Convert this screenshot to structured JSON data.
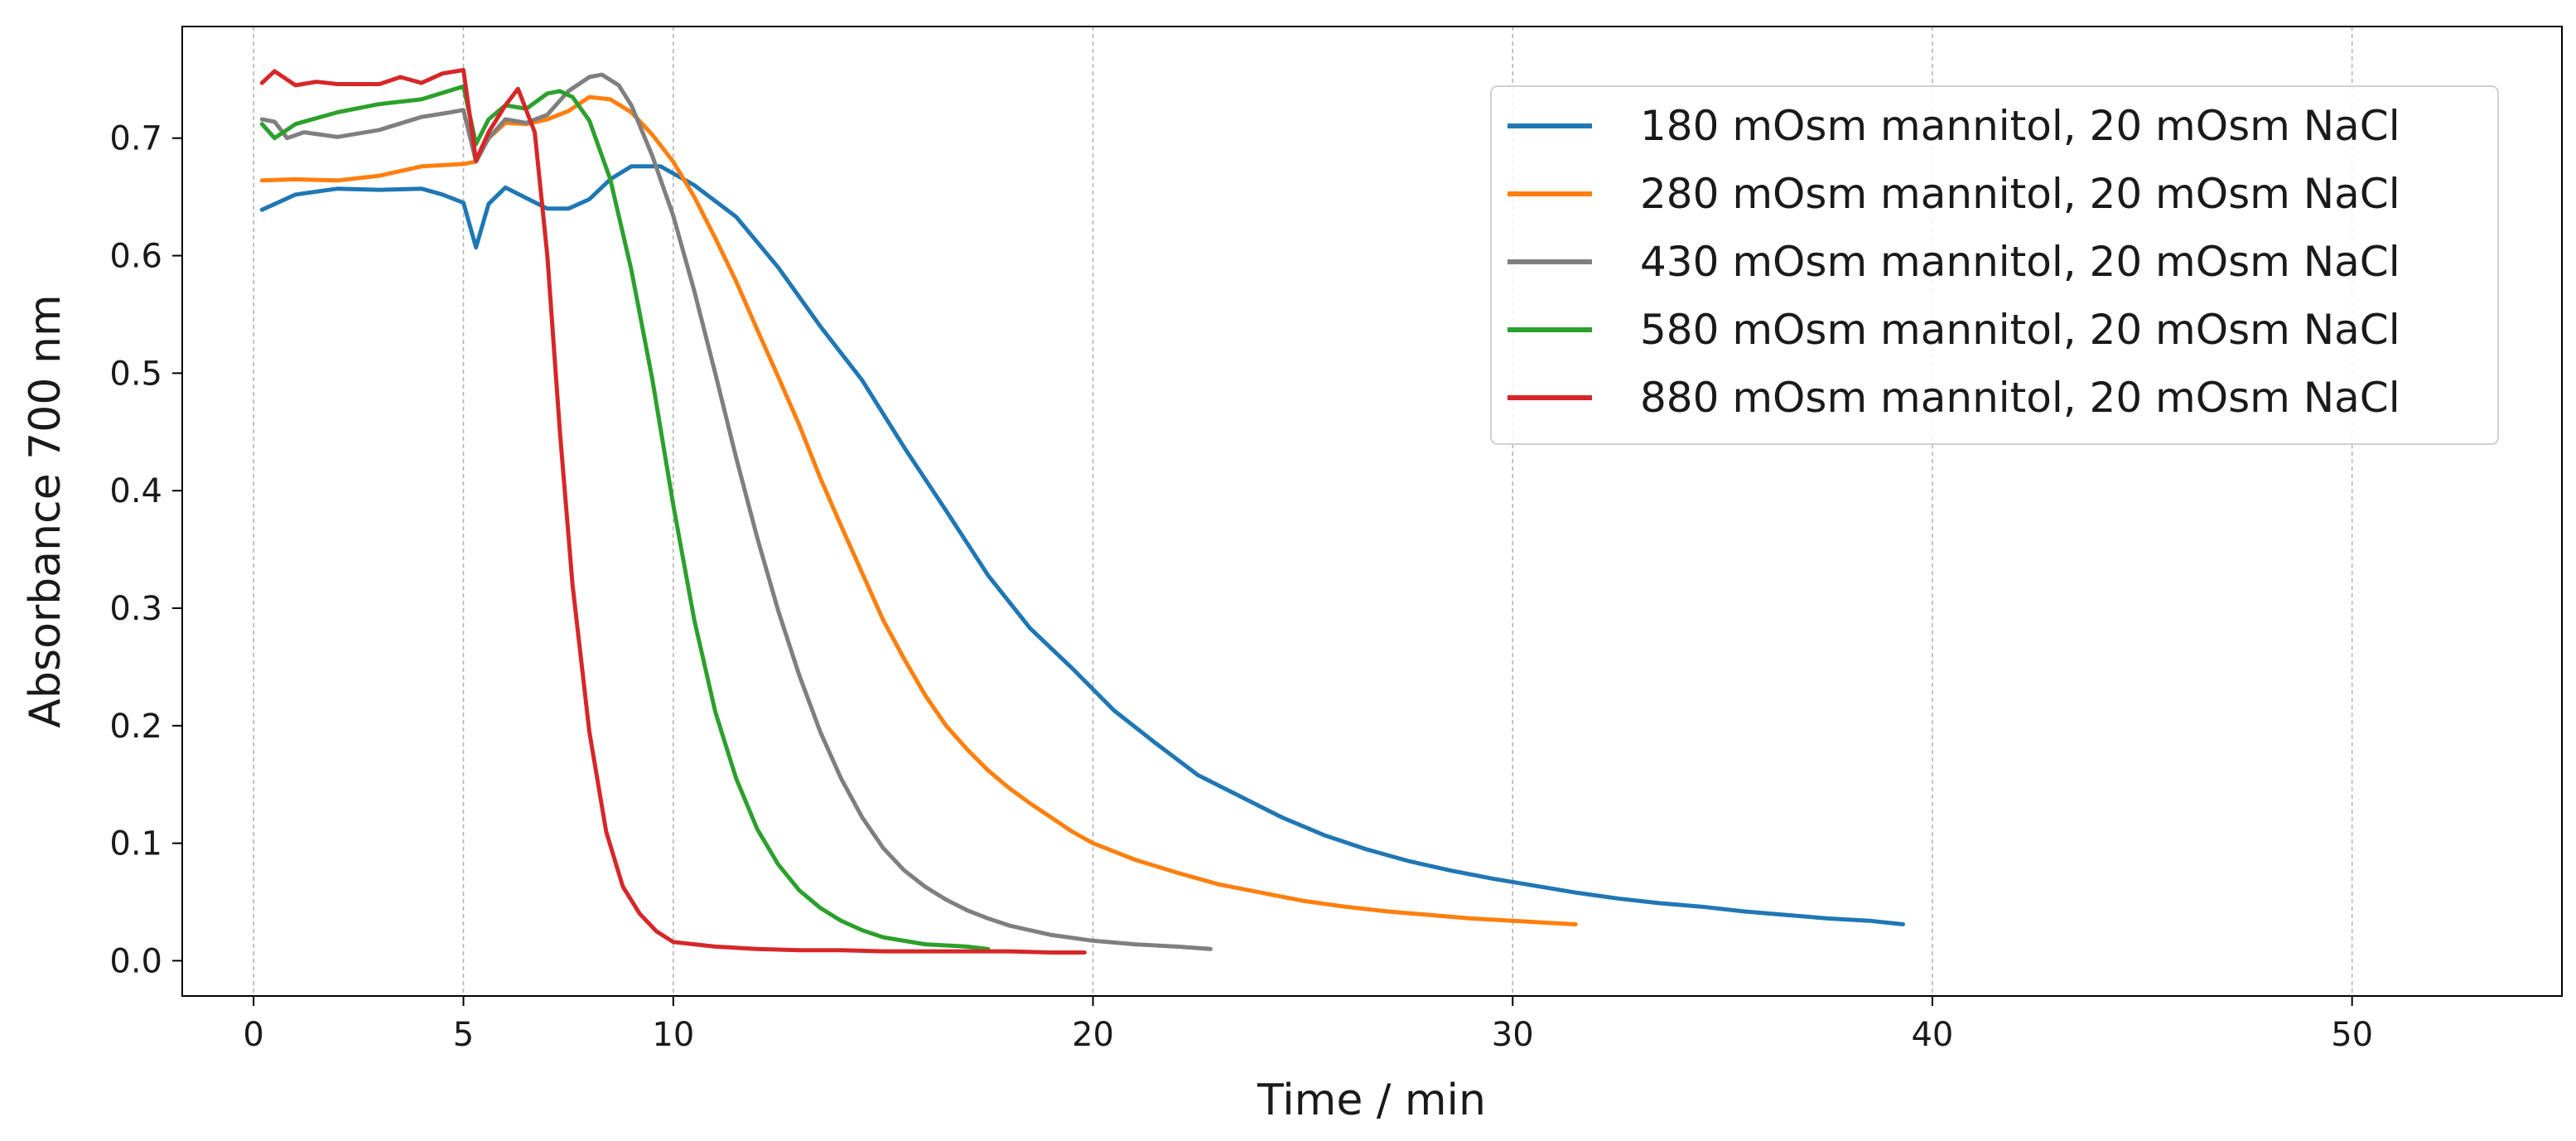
{
  "chart_data": {
    "type": "line",
    "title": "",
    "xlabel": "Time / min",
    "ylabel": "Absorbance 700 nm",
    "xlim": [
      -1.7,
      55
    ],
    "ylim": [
      -0.03,
      0.795
    ],
    "x_ticks": [
      0,
      5,
      10,
      20,
      30,
      40,
      50
    ],
    "x_tick_labels": [
      "0",
      "5",
      "10",
      "20",
      "30",
      "40",
      "50"
    ],
    "y_ticks": [
      0.0,
      0.1,
      0.2,
      0.3,
      0.4,
      0.5,
      0.6,
      0.7
    ],
    "y_tick_labels": [
      "0.0",
      "0.1",
      "0.2",
      "0.3",
      "0.4",
      "0.5",
      "0.6",
      "0.7"
    ],
    "grid": "vertical dashed lines at x ticks",
    "legend_position": "top-right",
    "series": [
      {
        "name": "180 mOsm mannitol, 20 mOsm NaCl",
        "color": "#1f77b4",
        "points": [
          [
            0.2,
            0.639
          ],
          [
            1,
            0.652
          ],
          [
            2,
            0.657
          ],
          [
            3,
            0.656
          ],
          [
            4,
            0.657
          ],
          [
            4.5,
            0.652
          ],
          [
            5,
            0.645
          ],
          [
            5.3,
            0.607
          ],
          [
            5.6,
            0.644
          ],
          [
            6,
            0.658
          ],
          [
            7,
            0.64
          ],
          [
            7.5,
            0.64
          ],
          [
            8,
            0.648
          ],
          [
            8.5,
            0.665
          ],
          [
            9,
            0.676
          ],
          [
            9.7,
            0.676
          ],
          [
            10.5,
            0.66
          ],
          [
            11.5,
            0.633
          ],
          [
            12.5,
            0.59
          ],
          [
            13.5,
            0.54
          ],
          [
            14.5,
            0.494
          ],
          [
            15.5,
            0.437
          ],
          [
            16.5,
            0.383
          ],
          [
            17.5,
            0.328
          ],
          [
            18.5,
            0.283
          ],
          [
            19.5,
            0.249
          ],
          [
            20.5,
            0.213
          ],
          [
            21.5,
            0.185
          ],
          [
            22.5,
            0.158
          ],
          [
            23.5,
            0.14
          ],
          [
            24.5,
            0.122
          ],
          [
            25.5,
            0.107
          ],
          [
            26.5,
            0.095
          ],
          [
            27.5,
            0.085
          ],
          [
            28.5,
            0.077
          ],
          [
            29.5,
            0.07
          ],
          [
            30.5,
            0.064
          ],
          [
            31.5,
            0.058
          ],
          [
            32.5,
            0.053
          ],
          [
            33.5,
            0.049
          ],
          [
            34.5,
            0.046
          ],
          [
            35.5,
            0.042
          ],
          [
            36.5,
            0.039
          ],
          [
            37.5,
            0.036
          ],
          [
            38.5,
            0.034
          ],
          [
            39.3,
            0.031
          ]
        ]
      },
      {
        "name": "280 mOsm mannitol, 20 mOsm NaCl",
        "color": "#ff7f0e",
        "points": [
          [
            0.2,
            0.664
          ],
          [
            1,
            0.665
          ],
          [
            2,
            0.664
          ],
          [
            3,
            0.668
          ],
          [
            4,
            0.676
          ],
          [
            5,
            0.678
          ],
          [
            5.3,
            0.68
          ],
          [
            5.6,
            0.7
          ],
          [
            6,
            0.713
          ],
          [
            6.5,
            0.712
          ],
          [
            7,
            0.716
          ],
          [
            7.5,
            0.723
          ],
          [
            8,
            0.735
          ],
          [
            8.5,
            0.733
          ],
          [
            9,
            0.722
          ],
          [
            9.5,
            0.703
          ],
          [
            10,
            0.68
          ],
          [
            10.5,
            0.65
          ],
          [
            11,
            0.615
          ],
          [
            11.5,
            0.578
          ],
          [
            12,
            0.537
          ],
          [
            12.5,
            0.497
          ],
          [
            13,
            0.456
          ],
          [
            13.5,
            0.411
          ],
          [
            14,
            0.37
          ],
          [
            14.5,
            0.33
          ],
          [
            15,
            0.29
          ],
          [
            15.5,
            0.257
          ],
          [
            16,
            0.226
          ],
          [
            16.5,
            0.2
          ],
          [
            17,
            0.18
          ],
          [
            17.5,
            0.162
          ],
          [
            18,
            0.147
          ],
          [
            18.5,
            0.134
          ],
          [
            19,
            0.122
          ],
          [
            19.5,
            0.11
          ],
          [
            20,
            0.1
          ],
          [
            21,
            0.086
          ],
          [
            22,
            0.075
          ],
          [
            23,
            0.065
          ],
          [
            24,
            0.058
          ],
          [
            25,
            0.051
          ],
          [
            26,
            0.046
          ],
          [
            27,
            0.042
          ],
          [
            28,
            0.039
          ],
          [
            29,
            0.036
          ],
          [
            30,
            0.034
          ],
          [
            31,
            0.032
          ],
          [
            31.5,
            0.031
          ]
        ]
      },
      {
        "name": "430 mOsm mannitol, 20 mOsm NaCl",
        "color": "#7f7f7f",
        "points": [
          [
            0.2,
            0.716
          ],
          [
            0.5,
            0.714
          ],
          [
            0.8,
            0.7
          ],
          [
            1.2,
            0.705
          ],
          [
            2,
            0.701
          ],
          [
            3,
            0.707
          ],
          [
            4,
            0.718
          ],
          [
            4.7,
            0.722
          ],
          [
            5,
            0.724
          ],
          [
            5.3,
            0.68
          ],
          [
            5.6,
            0.7
          ],
          [
            6,
            0.716
          ],
          [
            6.5,
            0.713
          ],
          [
            7,
            0.72
          ],
          [
            7.5,
            0.74
          ],
          [
            8,
            0.752
          ],
          [
            8.3,
            0.754
          ],
          [
            8.7,
            0.745
          ],
          [
            9,
            0.728
          ],
          [
            9.5,
            0.685
          ],
          [
            10,
            0.634
          ],
          [
            10.5,
            0.57
          ],
          [
            11,
            0.5
          ],
          [
            11.5,
            0.428
          ],
          [
            12,
            0.36
          ],
          [
            12.5,
            0.298
          ],
          [
            13,
            0.243
          ],
          [
            13.5,
            0.195
          ],
          [
            14,
            0.155
          ],
          [
            14.5,
            0.122
          ],
          [
            15,
            0.096
          ],
          [
            15.5,
            0.077
          ],
          [
            16,
            0.063
          ],
          [
            16.5,
            0.052
          ],
          [
            17,
            0.043
          ],
          [
            17.5,
            0.036
          ],
          [
            18,
            0.03
          ],
          [
            19,
            0.022
          ],
          [
            20,
            0.017
          ],
          [
            21,
            0.014
          ],
          [
            22,
            0.012
          ],
          [
            22.8,
            0.01
          ]
        ]
      },
      {
        "name": "580 mOsm mannitol, 20 mOsm NaCl",
        "color": "#2ca02c",
        "points": [
          [
            0.2,
            0.712
          ],
          [
            0.5,
            0.7
          ],
          [
            1,
            0.712
          ],
          [
            2,
            0.722
          ],
          [
            3,
            0.729
          ],
          [
            4,
            0.733
          ],
          [
            5,
            0.744
          ],
          [
            5.3,
            0.695
          ],
          [
            5.6,
            0.716
          ],
          [
            6,
            0.728
          ],
          [
            6.5,
            0.725
          ],
          [
            7,
            0.738
          ],
          [
            7.3,
            0.74
          ],
          [
            7.6,
            0.735
          ],
          [
            8,
            0.715
          ],
          [
            8.5,
            0.665
          ],
          [
            9,
            0.588
          ],
          [
            9.5,
            0.495
          ],
          [
            10,
            0.388
          ],
          [
            10.5,
            0.29
          ],
          [
            11,
            0.212
          ],
          [
            11.5,
            0.155
          ],
          [
            12,
            0.112
          ],
          [
            12.5,
            0.082
          ],
          [
            13,
            0.06
          ],
          [
            13.5,
            0.045
          ],
          [
            14,
            0.034
          ],
          [
            14.5,
            0.026
          ],
          [
            15,
            0.02
          ],
          [
            16,
            0.014
          ],
          [
            17,
            0.012
          ],
          [
            17.5,
            0.01
          ]
        ]
      },
      {
        "name": "880 mOsm mannitol, 20 mOsm NaCl",
        "color": "#d62728",
        "points": [
          [
            0.2,
            0.747
          ],
          [
            0.5,
            0.757
          ],
          [
            1,
            0.745
          ],
          [
            1.5,
            0.748
          ],
          [
            2,
            0.746
          ],
          [
            3,
            0.746
          ],
          [
            3.5,
            0.752
          ],
          [
            4,
            0.747
          ],
          [
            4.5,
            0.755
          ],
          [
            5,
            0.758
          ],
          [
            5.3,
            0.681
          ],
          [
            5.6,
            0.705
          ],
          [
            6,
            0.728
          ],
          [
            6.3,
            0.742
          ],
          [
            6.7,
            0.705
          ],
          [
            7,
            0.6
          ],
          [
            7.3,
            0.45
          ],
          [
            7.6,
            0.32
          ],
          [
            8,
            0.195
          ],
          [
            8.4,
            0.11
          ],
          [
            8.8,
            0.063
          ],
          [
            9.2,
            0.04
          ],
          [
            9.6,
            0.025
          ],
          [
            10,
            0.016
          ],
          [
            11,
            0.012
          ],
          [
            12,
            0.01
          ],
          [
            13,
            0.009
          ],
          [
            14,
            0.009
          ],
          [
            15,
            0.008
          ],
          [
            16,
            0.008
          ],
          [
            17,
            0.008
          ],
          [
            18,
            0.008
          ],
          [
            19,
            0.007
          ],
          [
            19.8,
            0.007
          ]
        ]
      }
    ]
  }
}
